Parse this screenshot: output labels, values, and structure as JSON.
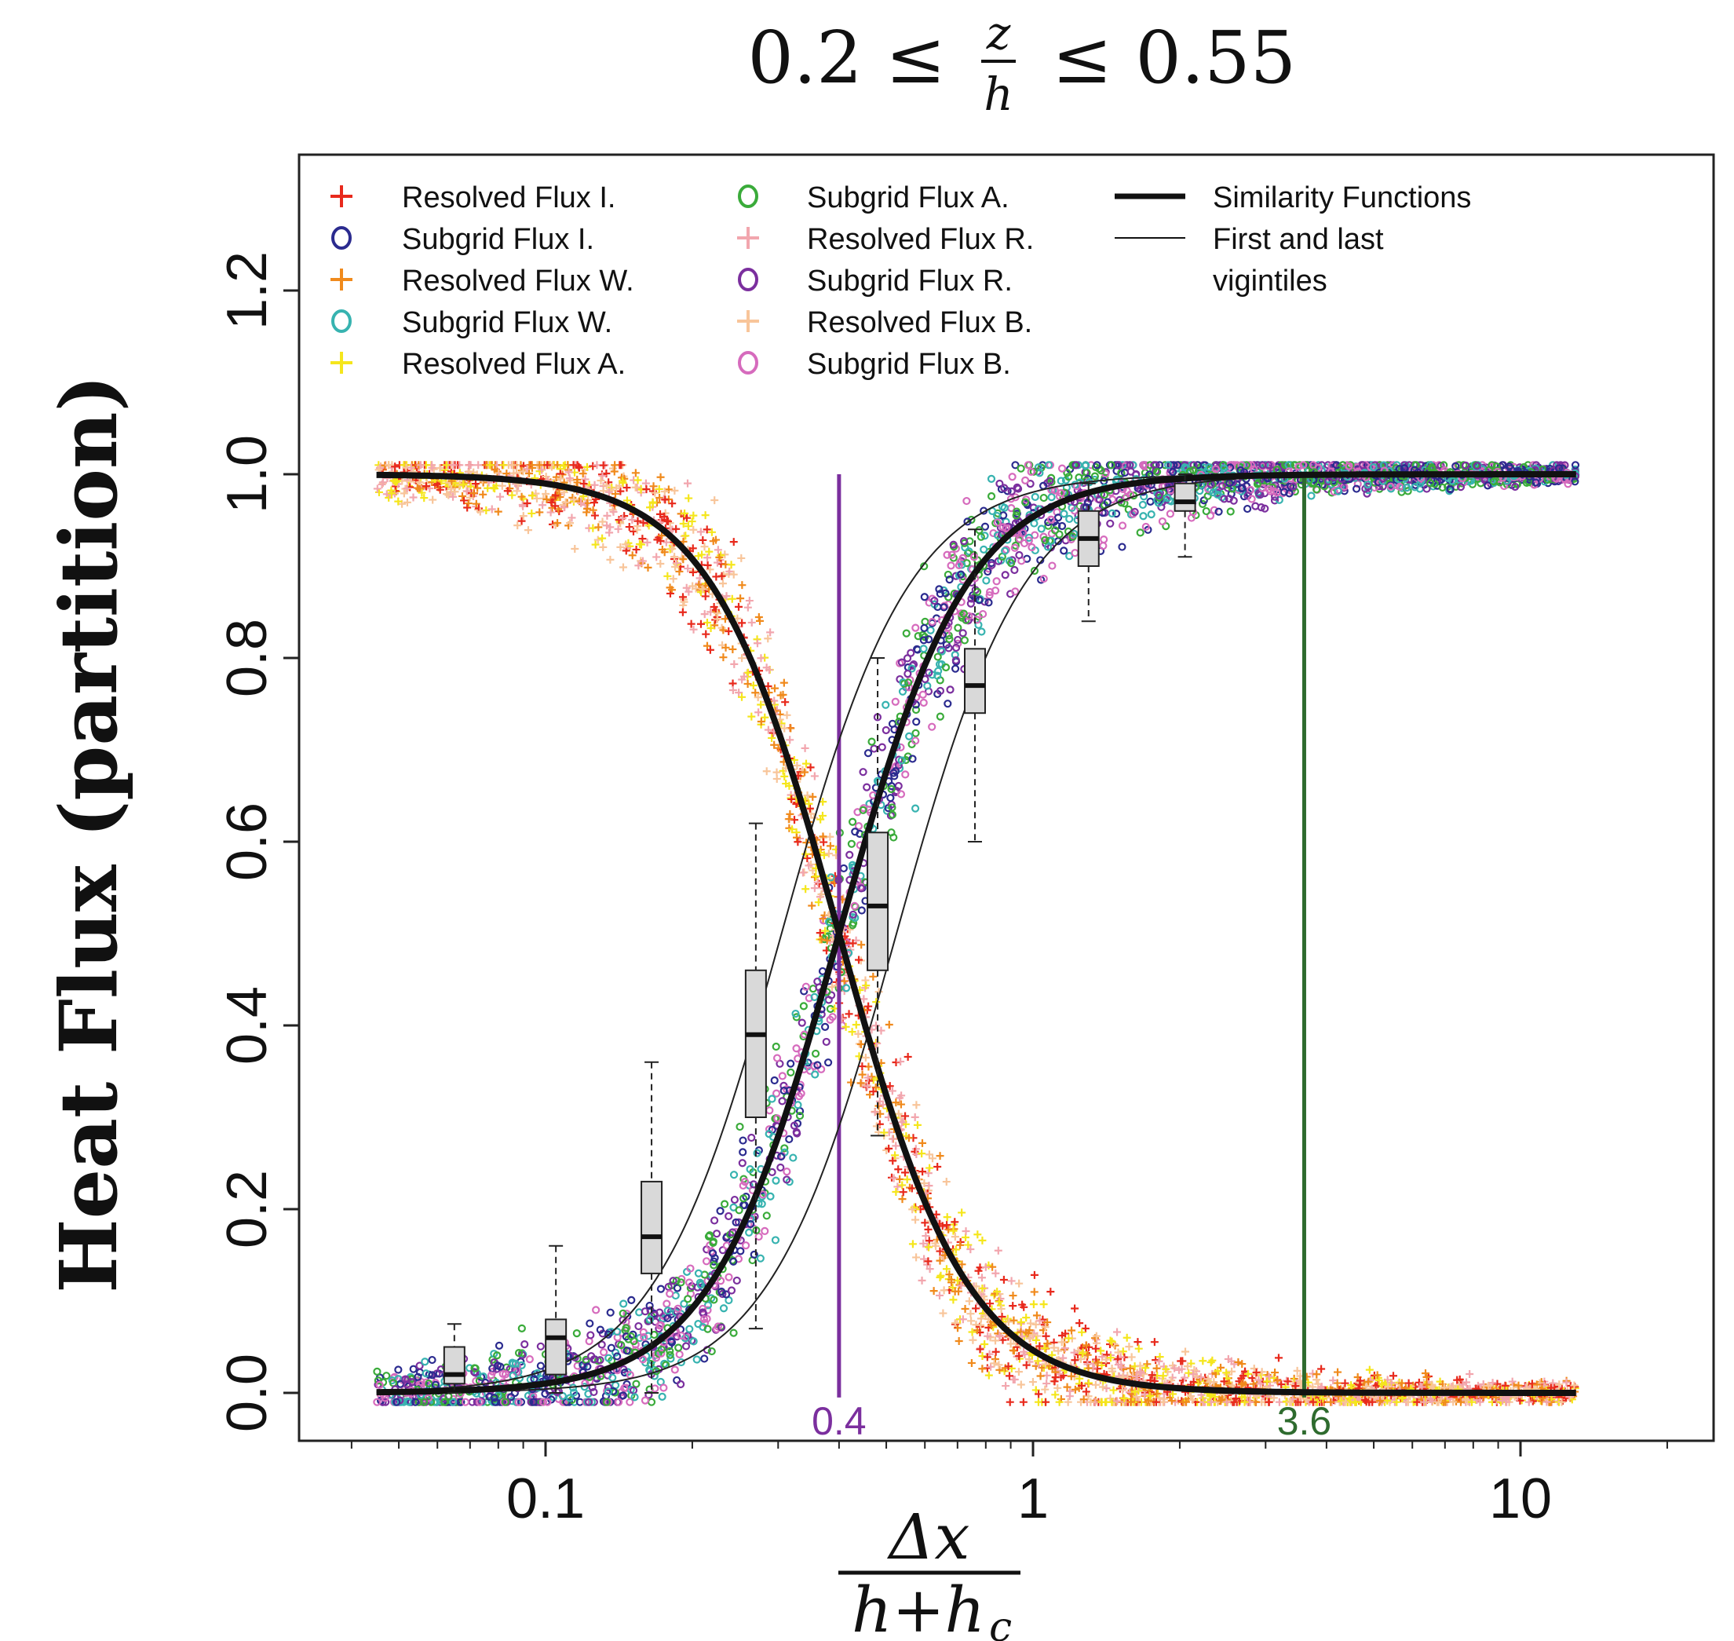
{
  "chart_data": {
    "type": "scatter",
    "title": "0.2 ≤ z/h ≤ 0.55",
    "title_parts": {
      "left": "0.2 ≤",
      "frac_num": "z",
      "frac_den": "h",
      "right": "≤ 0.55"
    },
    "xlabel": "Δx / (h+h_c)",
    "xlabel_parts": {
      "num": "Δx",
      "den": "h+h",
      "den_sub": "c"
    },
    "ylabel": "Heat Flux (partition)",
    "x_scale": "log",
    "xlim": [
      0.035,
      20
    ],
    "ylim": [
      -0.05,
      1.35
    ],
    "x_ticks": [
      {
        "value": 0.1,
        "label": "0.1"
      },
      {
        "value": 1,
        "label": "1"
      },
      {
        "value": 10,
        "label": "10"
      }
    ],
    "y_ticks": [
      {
        "value": 0.0,
        "label": "0.0"
      },
      {
        "value": 0.2,
        "label": "0.2"
      },
      {
        "value": 0.4,
        "label": "0.4"
      },
      {
        "value": 0.6,
        "label": "0.6"
      },
      {
        "value": 0.8,
        "label": "0.8"
      },
      {
        "value": 1.0,
        "label": "1.0"
      },
      {
        "value": 1.2,
        "label": "1.2"
      }
    ],
    "grid": false,
    "legend_position": "top-left",
    "legend": [
      {
        "label": "Resolved Flux I.",
        "marker": "plus",
        "color": "#e8291c"
      },
      {
        "label": "Subgrid Flux I.",
        "marker": "circle",
        "color": "#2b2b8f"
      },
      {
        "label": "Resolved Flux W.",
        "marker": "plus",
        "color": "#f08a1c"
      },
      {
        "label": "Subgrid Flux W.",
        "marker": "circle",
        "color": "#37b3b0"
      },
      {
        "label": "Resolved Flux A.",
        "marker": "plus",
        "color": "#f5e61c"
      },
      {
        "label": "Subgrid Flux A.",
        "marker": "circle",
        "color": "#3aab3a"
      },
      {
        "label": "Resolved Flux R.",
        "marker": "plus",
        "color": "#f2a6ae"
      },
      {
        "label": "Subgrid Flux R.",
        "marker": "circle",
        "color": "#7b2f9e"
      },
      {
        "label": "Resolved Flux B.",
        "marker": "plus",
        "color": "#f8c59a"
      },
      {
        "label": "Subgrid Flux B.",
        "marker": "circle",
        "color": "#d66bbd"
      },
      {
        "label": "Similarity Functions",
        "marker": "thick-line",
        "color": "#111111"
      },
      {
        "label": "First and last vigintiles",
        "label_lines": [
          "First and last",
          "vigintiles"
        ],
        "marker": "thin-line",
        "color": "#111111"
      }
    ],
    "similarity": {
      "x0": 0.4,
      "steepness": 3.3
    },
    "vigintile_shift": 0.13,
    "annotations": [
      {
        "label": "0.4",
        "x": 0.4,
        "color": "#7b2f9e"
      },
      {
        "label": "3.6",
        "x": 3.6,
        "color": "#2e6b2e"
      }
    ],
    "boxplots": [
      {
        "x": 0.065,
        "q1": 0.01,
        "median": 0.02,
        "q3": 0.05,
        "lo": 0.0,
        "hi": 0.075
      },
      {
        "x": 0.105,
        "q1": 0.02,
        "median": 0.06,
        "q3": 0.08,
        "lo": 0.0,
        "hi": 0.16
      },
      {
        "x": 0.165,
        "q1": 0.13,
        "median": 0.17,
        "q3": 0.23,
        "lo": 0.0,
        "hi": 0.36
      },
      {
        "x": 0.27,
        "q1": 0.3,
        "median": 0.39,
        "q3": 0.46,
        "lo": 0.07,
        "hi": 0.62
      },
      {
        "x": 0.48,
        "q1": 0.46,
        "median": 0.53,
        "q3": 0.61,
        "lo": 0.28,
        "hi": 0.8
      },
      {
        "x": 0.76,
        "q1": 0.74,
        "median": 0.77,
        "q3": 0.81,
        "lo": 0.6,
        "hi": 0.94
      },
      {
        "x": 1.3,
        "q1": 0.9,
        "median": 0.93,
        "q3": 0.96,
        "lo": 0.84,
        "hi": 0.99
      },
      {
        "x": 2.05,
        "q1": 0.96,
        "median": 0.97,
        "q3": 0.99,
        "lo": 0.91,
        "hi": 1.0
      }
    ]
  }
}
